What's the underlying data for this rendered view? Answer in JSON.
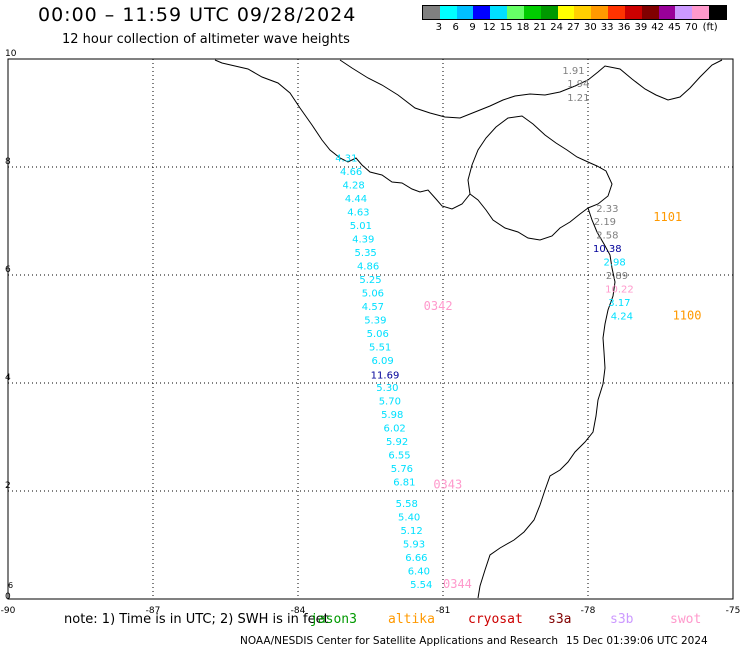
{
  "header": {
    "title": "00:00 – 11:59 UTC 09/28/2024",
    "subtitle": "12 hour collection of altimeter wave heights"
  },
  "legend": {
    "unit": "(ft)",
    "ticks": [
      "3",
      "6",
      "9",
      "12",
      "15",
      "18",
      "21",
      "24",
      "27",
      "30",
      "33",
      "36",
      "39",
      "42",
      "45",
      "70"
    ],
    "colors": [
      "#808080",
      "#00ffff",
      "#00bfff",
      "#0000ff",
      "#00e0ff",
      "#66ff66",
      "#00cc00",
      "#009900",
      "#ffff00",
      "#ffd000",
      "#ff9900",
      "#ff3300",
      "#cc0000",
      "#800000",
      "#990099",
      "#cc99ff",
      "#ff99cc",
      "#000000"
    ]
  },
  "map": {
    "lon_range": [
      -90,
      -75
    ],
    "lat_range": [
      0,
      10
    ],
    "x_ticks": [
      "-90",
      "-87",
      "-84",
      "-81",
      "-78",
      "-75"
    ],
    "y_ticks": [
      "0",
      "2",
      "4",
      "6",
      "8",
      "10"
    ],
    "extra_y_label": "6",
    "observations": [
      {
        "lon": -78.3,
        "lat": 9.72,
        "text": "1.91",
        "color": "#808080"
      },
      {
        "lon": -78.2,
        "lat": 9.48,
        "text": "1.94",
        "color": "#808080"
      },
      {
        "lon": -78.2,
        "lat": 9.22,
        "text": "1.21",
        "color": "#808080"
      },
      {
        "lon": -83.0,
        "lat": 8.1,
        "text": "4.31",
        "color": "#00e0ff"
      },
      {
        "lon": -82.9,
        "lat": 7.85,
        "text": "4.66",
        "color": "#00e0ff"
      },
      {
        "lon": -82.85,
        "lat": 7.6,
        "text": "4.28",
        "color": "#00e0ff"
      },
      {
        "lon": -82.8,
        "lat": 7.35,
        "text": "4.44",
        "color": "#00e0ff"
      },
      {
        "lon": -82.75,
        "lat": 7.1,
        "text": "4.63",
        "color": "#00e0ff"
      },
      {
        "lon": -82.7,
        "lat": 6.85,
        "text": "5.01",
        "color": "#00e0ff"
      },
      {
        "lon": -82.65,
        "lat": 6.6,
        "text": "4.39",
        "color": "#00e0ff"
      },
      {
        "lon": -82.6,
        "lat": 6.35,
        "text": "5.35",
        "color": "#00e0ff"
      },
      {
        "lon": -82.55,
        "lat": 6.1,
        "text": "4.86",
        "color": "#00e0ff"
      },
      {
        "lon": -82.5,
        "lat": 5.85,
        "text": "5.25",
        "color": "#00e0ff"
      },
      {
        "lon": -82.45,
        "lat": 5.6,
        "text": "5.06",
        "color": "#00e0ff"
      },
      {
        "lon": -82.45,
        "lat": 5.35,
        "text": "4.57",
        "color": "#00e0ff"
      },
      {
        "lon": -82.4,
        "lat": 5.1,
        "text": "5.39",
        "color": "#00e0ff"
      },
      {
        "lon": -82.35,
        "lat": 4.85,
        "text": "5.06",
        "color": "#00e0ff"
      },
      {
        "lon": -82.3,
        "lat": 4.6,
        "text": "5.51",
        "color": "#00e0ff"
      },
      {
        "lon": -82.25,
        "lat": 4.35,
        "text": "6.09",
        "color": "#00e0ff"
      },
      {
        "lon": -82.2,
        "lat": 4.08,
        "text": "11.69",
        "color": "#000099"
      },
      {
        "lon": -82.15,
        "lat": 3.85,
        "text": "5.30",
        "color": "#00e0ff"
      },
      {
        "lon": -82.1,
        "lat": 3.6,
        "text": "5.70",
        "color": "#00e0ff"
      },
      {
        "lon": -82.05,
        "lat": 3.35,
        "text": "5.98",
        "color": "#00e0ff"
      },
      {
        "lon": -82.0,
        "lat": 3.1,
        "text": "6.02",
        "color": "#00e0ff"
      },
      {
        "lon": -81.95,
        "lat": 2.85,
        "text": "5.92",
        "color": "#00e0ff"
      },
      {
        "lon": -81.9,
        "lat": 2.6,
        "text": "6.55",
        "color": "#00e0ff"
      },
      {
        "lon": -81.85,
        "lat": 2.35,
        "text": "5.76",
        "color": "#00e0ff"
      },
      {
        "lon": -81.8,
        "lat": 2.1,
        "text": "6.81",
        "color": "#00e0ff"
      },
      {
        "lon": -81.75,
        "lat": 1.7,
        "text": "5.58",
        "color": "#00e0ff"
      },
      {
        "lon": -81.7,
        "lat": 1.45,
        "text": "5.40",
        "color": "#00e0ff"
      },
      {
        "lon": -81.65,
        "lat": 1.2,
        "text": "5.12",
        "color": "#00e0ff"
      },
      {
        "lon": -81.6,
        "lat": 0.95,
        "text": "5.93",
        "color": "#00e0ff"
      },
      {
        "lon": -81.55,
        "lat": 0.7,
        "text": "6.66",
        "color": "#00e0ff"
      },
      {
        "lon": -81.5,
        "lat": 0.45,
        "text": "6.40",
        "color": "#00e0ff"
      },
      {
        "lon": -81.45,
        "lat": 0.2,
        "text": "5.54",
        "color": "#00e0ff"
      },
      {
        "lon": -77.6,
        "lat": 7.17,
        "text": "2.33",
        "color": "#808080"
      },
      {
        "lon": -77.65,
        "lat": 6.93,
        "text": "2.19",
        "color": "#808080"
      },
      {
        "lon": -77.6,
        "lat": 6.68,
        "text": "2.58",
        "color": "#808080"
      },
      {
        "lon": -77.6,
        "lat": 6.43,
        "text": "10.38",
        "color": "#000099"
      },
      {
        "lon": -77.45,
        "lat": 6.18,
        "text": "2.98",
        "color": "#00e0ff"
      },
      {
        "lon": -77.4,
        "lat": 5.93,
        "text": "2.89",
        "color": "#808080"
      },
      {
        "lon": -77.35,
        "lat": 5.68,
        "text": "10.22",
        "color": "#ff99cc"
      },
      {
        "lon": -77.35,
        "lat": 5.43,
        "text": "3.17",
        "color": "#00e0ff"
      },
      {
        "lon": -77.3,
        "lat": 5.18,
        "text": "4.24",
        "color": "#00e0ff"
      }
    ],
    "pass_labels": [
      {
        "lon": -81.4,
        "lat": 5.35,
        "text": "0342",
        "color": "#ff99cc"
      },
      {
        "lon": -81.2,
        "lat": 2.05,
        "text": "0343",
        "color": "#ff99cc"
      },
      {
        "lon": -81.0,
        "lat": 0.2,
        "text": "0344",
        "color": "#ff99cc"
      },
      {
        "lon": -76.65,
        "lat": 7.0,
        "text": "1101",
        "color": "#ff9900"
      },
      {
        "lon": -76.25,
        "lat": 5.18,
        "text": "1100",
        "color": "#ff9900"
      }
    ]
  },
  "footer": {
    "note": "note: 1) Time is in UTC; 2) SWH is in feet",
    "satellites": [
      {
        "name": "jason3",
        "color": "#009900"
      },
      {
        "name": "altika",
        "color": "#ff9900"
      },
      {
        "name": "cryosat",
        "color": "#cc0000"
      },
      {
        "name": "s3a",
        "color": "#800000"
      },
      {
        "name": "s3b",
        "color": "#cc99ff"
      },
      {
        "name": "swot",
        "color": "#ff99cc"
      }
    ],
    "credit": "NOAA/NESDIS Center for Satellite Applications and Research",
    "generated": "15 Dec 01:39:06 UTC 2024"
  }
}
